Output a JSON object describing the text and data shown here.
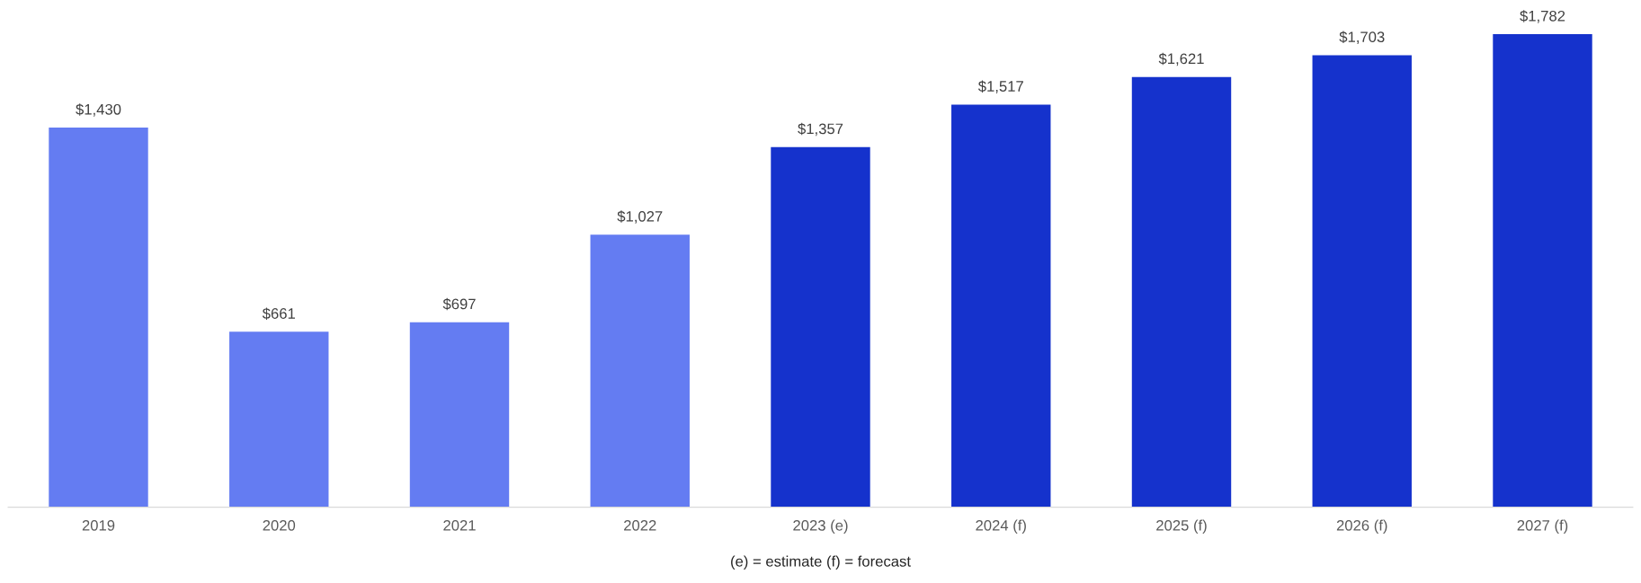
{
  "chart_data": {
    "type": "bar",
    "categories": [
      "2019",
      "2020",
      "2021",
      "2022",
      "2023 (e)",
      "2024 (f)",
      "2025 (f)",
      "2026 (f)",
      "2027 (f)"
    ],
    "values": [
      1430,
      661,
      697,
      1027,
      1357,
      1517,
      1621,
      1703,
      1782
    ],
    "colors": [
      "#647cf2",
      "#647cf2",
      "#647cf2",
      "#647cf2",
      "#1532cc",
      "#1532cc",
      "#1532cc",
      "#1532cc",
      "#1532cc"
    ],
    "value_labels": [
      "$1,430",
      "$661",
      "$697",
      "$1,027",
      "$1,357",
      "$1,517",
      "$1,621",
      "$1,703",
      "$1,782"
    ],
    "annotations": [
      "(e) = estimate (f) = forecast"
    ],
    "grid": false,
    "legend": false
  }
}
